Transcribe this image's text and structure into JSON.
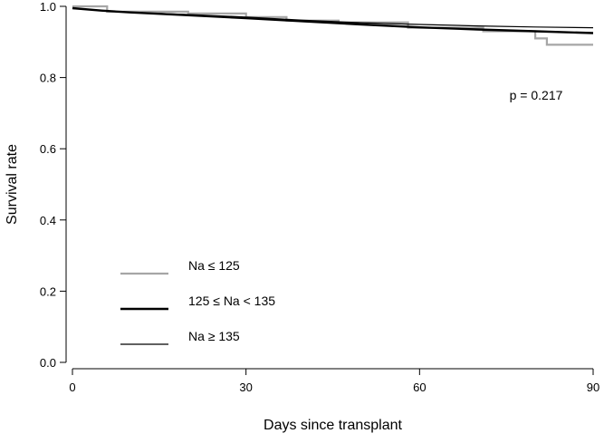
{
  "chart_data": {
    "type": "line",
    "title": "",
    "xlabel": "Days since transplant",
    "ylabel": "Survival rate",
    "xlim": [
      0,
      90
    ],
    "ylim": [
      0,
      1.0
    ],
    "x_ticks": [
      0,
      30,
      60,
      90
    ],
    "x_tick_labels": [
      "0",
      "30",
      "60",
      "90"
    ],
    "y_ticks": [
      0,
      0.2,
      0.4,
      0.6,
      0.8,
      1.0
    ],
    "y_tick_labels": [
      "0.0",
      "0.2",
      "0.4",
      "0.6",
      "0.8",
      "1.0"
    ],
    "grid": false,
    "legend_position": "bottom-left",
    "annotation": "p = 0.217",
    "series": [
      {
        "name": "Na ≤ 125",
        "color": "#a6a6a6",
        "style": "step-thick",
        "x": [
          0,
          6,
          6,
          20,
          20,
          30,
          30,
          37,
          37,
          46,
          46,
          58,
          58,
          71,
          71,
          80,
          80,
          82,
          82,
          90
        ],
        "y": [
          1.0,
          1.0,
          0.985,
          0.985,
          0.98,
          0.98,
          0.97,
          0.97,
          0.96,
          0.96,
          0.955,
          0.955,
          0.94,
          0.94,
          0.93,
          0.93,
          0.91,
          0.91,
          0.892,
          0.892
        ]
      },
      {
        "name": "125 ≤ Na < 135",
        "color": "#000000",
        "style": "thick",
        "x": [
          0,
          5,
          10,
          20,
          30,
          40,
          50,
          60,
          70,
          80,
          90
        ],
        "y": [
          0.995,
          0.988,
          0.983,
          0.975,
          0.967,
          0.958,
          0.949,
          0.941,
          0.935,
          0.93,
          0.925
        ]
      },
      {
        "name": "Na ≥ 135",
        "color": "#000000",
        "style": "thin",
        "x": [
          0,
          5,
          10,
          20,
          30,
          40,
          50,
          60,
          70,
          80,
          90
        ],
        "y": [
          0.994,
          0.988,
          0.983,
          0.977,
          0.97,
          0.961,
          0.954,
          0.949,
          0.945,
          0.942,
          0.94
        ]
      }
    ]
  }
}
